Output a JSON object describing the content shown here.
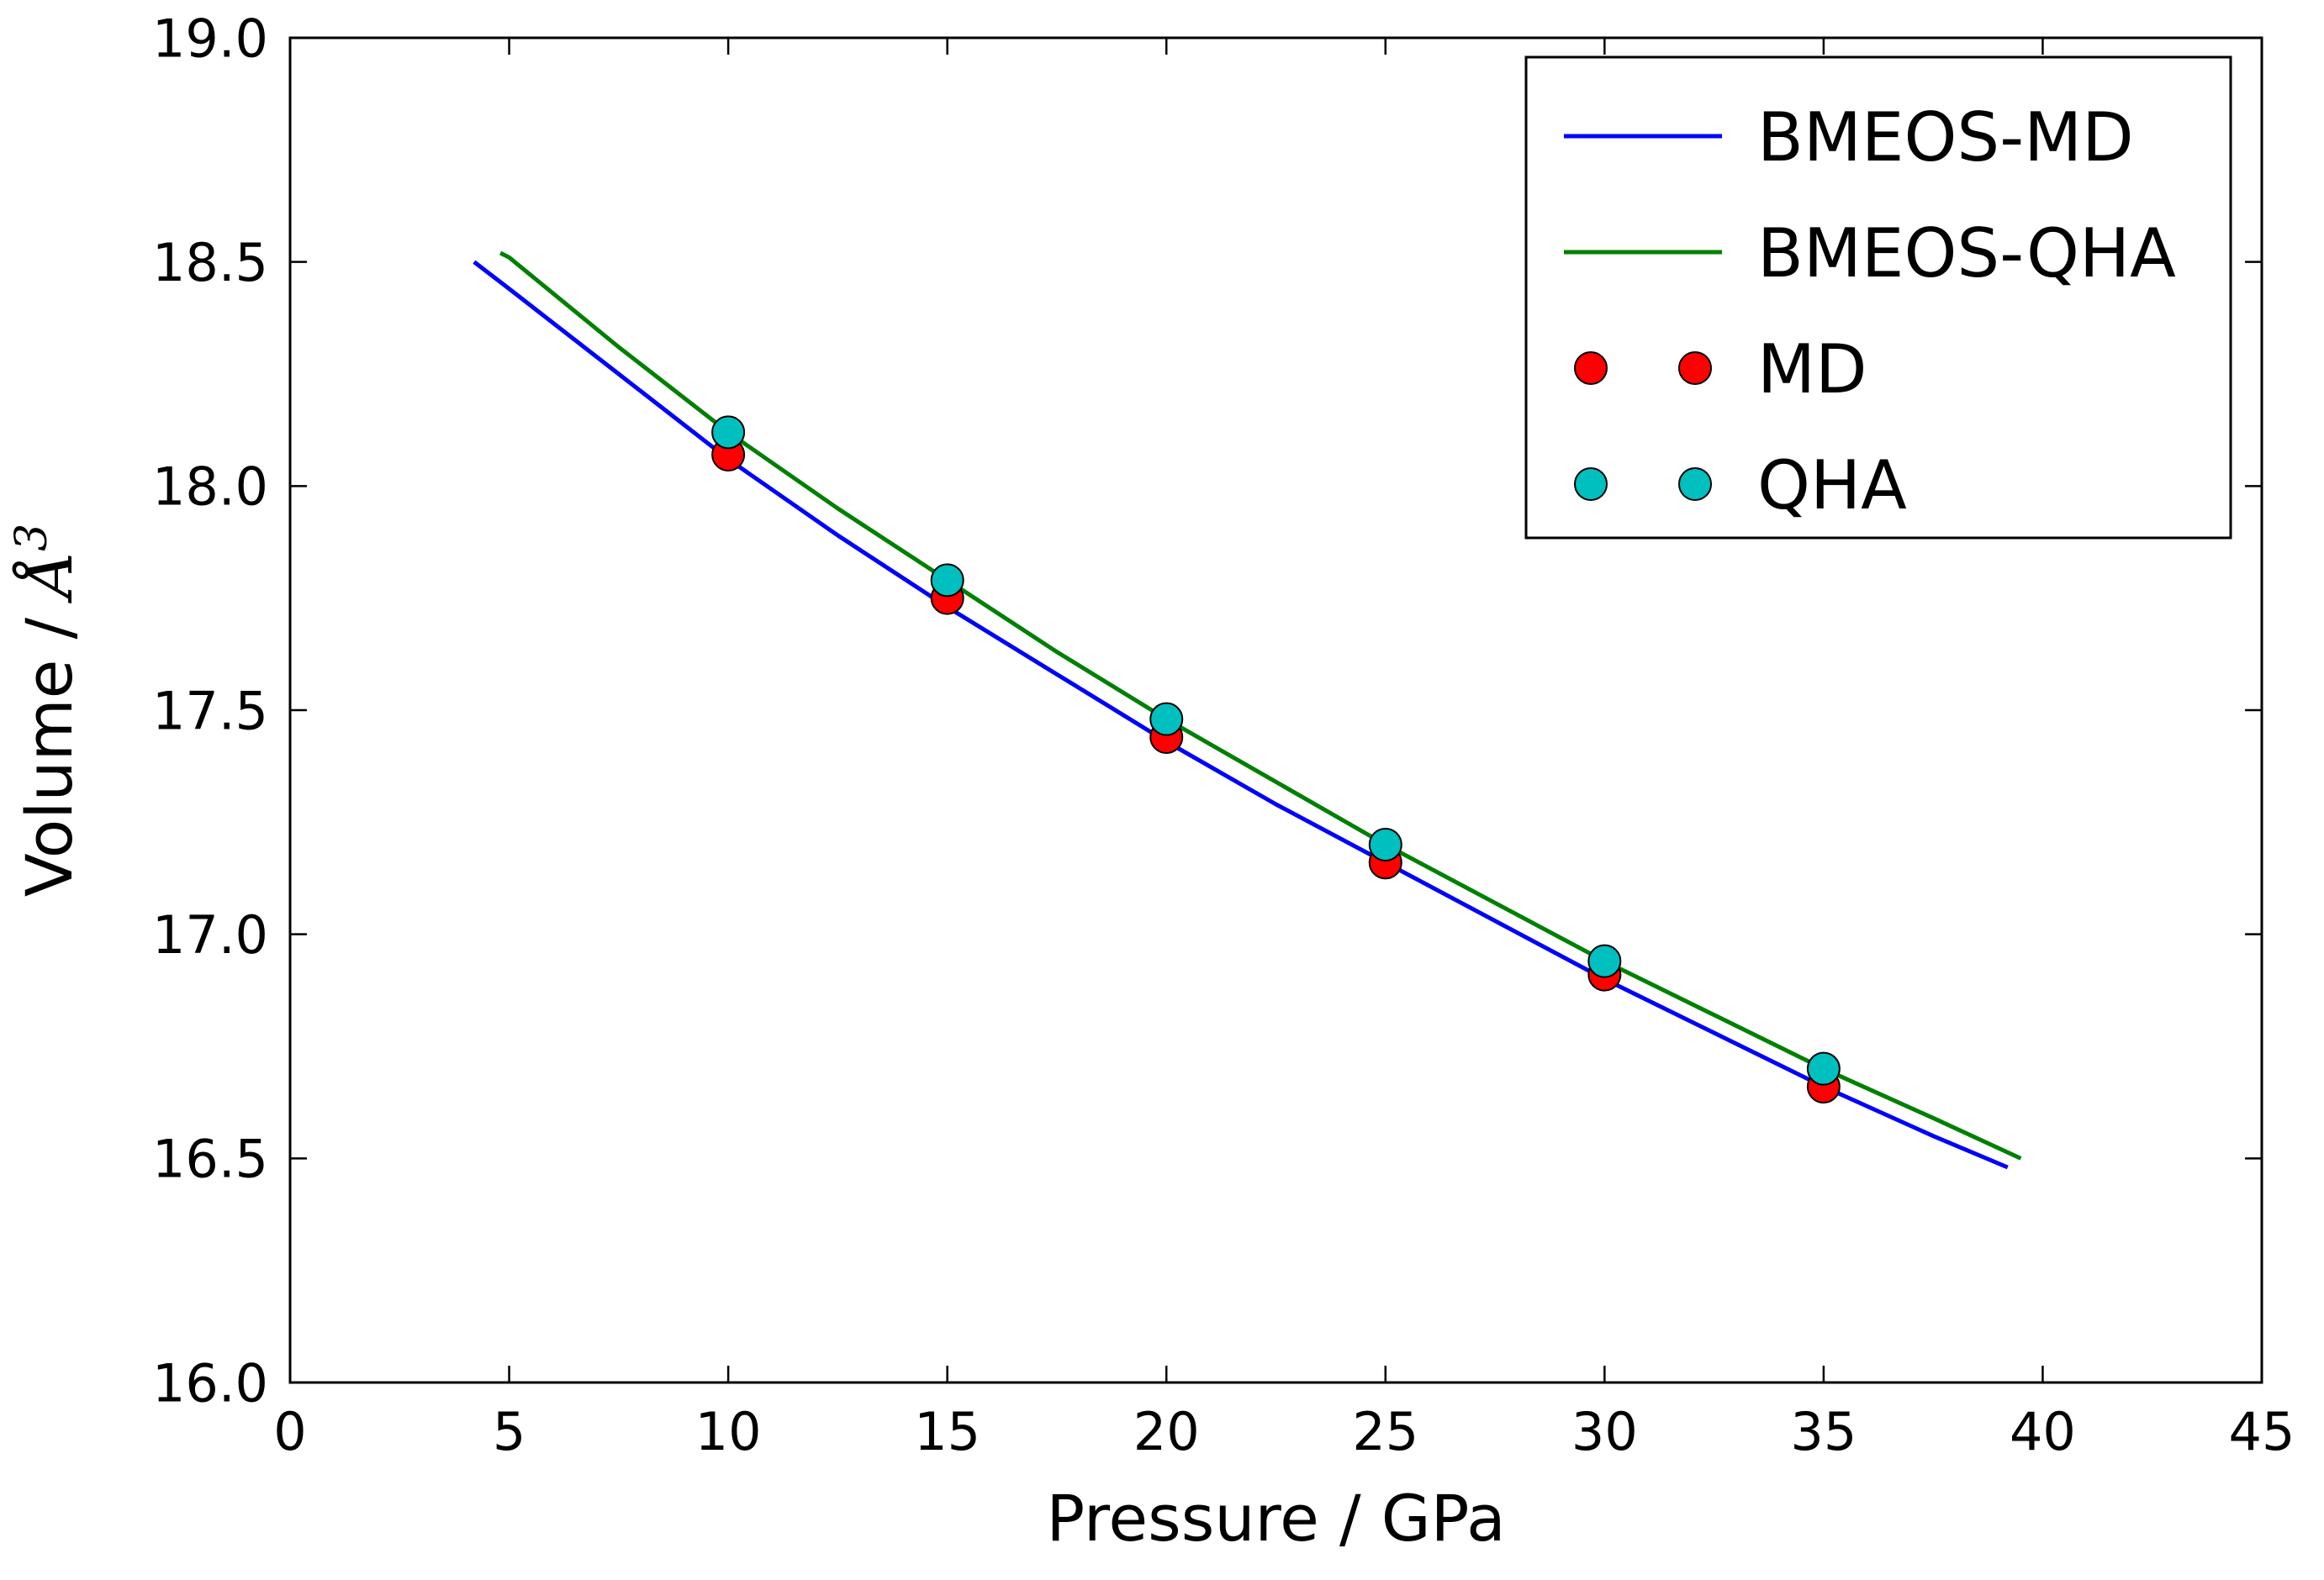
{
  "figure": {
    "background": "#ffffff",
    "frame_color": "#000000",
    "tick_color": "#000000"
  },
  "chart_data": {
    "type": "line+scatter",
    "title": "",
    "xlabel": "Pressure / GPa",
    "ylabel": "Volume / Å³",
    "ylabel_parts": {
      "prefix": "Volume / ",
      "symbol": "Å",
      "superscript": "3"
    },
    "xlim": [
      0,
      45
    ],
    "ylim": [
      16.0,
      19.0
    ],
    "xticks": [
      0,
      5,
      10,
      15,
      20,
      25,
      30,
      35,
      40,
      45
    ],
    "xtick_labels": [
      "0",
      "5",
      "10",
      "15",
      "20",
      "25",
      "30",
      "35",
      "40",
      "45"
    ],
    "yticks": [
      16.0,
      16.5,
      17.0,
      17.5,
      18.0,
      18.5,
      19.0
    ],
    "ytick_labels": [
      "16.0",
      "16.5",
      "17.0",
      "17.5",
      "18.0",
      "18.5",
      "19.0"
    ],
    "grid": false,
    "legend": {
      "position": "upper right",
      "entries": [
        {
          "label": "BMEOS-MD",
          "type": "line",
          "color": "#0000ff"
        },
        {
          "label": "BMEOS-QHA",
          "type": "line",
          "color": "#008000"
        },
        {
          "label": "MD",
          "type": "scatter",
          "color": "#ff0000"
        },
        {
          "label": "QHA",
          "type": "scatter",
          "color": "#00bfbf"
        }
      ]
    },
    "series": [
      {
        "name": "BMEOS-MD",
        "type": "line",
        "color": "#0000ff",
        "x": [
          4.2,
          5,
          7.5,
          10,
          12.5,
          15,
          17.5,
          20,
          22.5,
          25,
          27.5,
          30,
          32.5,
          35,
          37.5,
          39.2
        ],
        "y": [
          18.5,
          18.44,
          18.25,
          18.06,
          17.89,
          17.73,
          17.58,
          17.43,
          17.29,
          17.16,
          17.03,
          16.9,
          16.78,
          16.66,
          16.55,
          16.48
        ]
      },
      {
        "name": "BMEOS-QHA",
        "type": "line",
        "color": "#008000",
        "x": [
          4.8,
          5,
          7.5,
          10,
          12.5,
          15,
          17.5,
          20,
          22.5,
          25,
          27.5,
          30,
          32.5,
          35,
          37.5,
          39.5
        ],
        "y": [
          18.52,
          18.51,
          18.31,
          18.12,
          17.95,
          17.79,
          17.63,
          17.48,
          17.34,
          17.2,
          17.07,
          16.94,
          16.82,
          16.7,
          16.59,
          16.5
        ]
      },
      {
        "name": "MD",
        "type": "scatter",
        "color": "#ff0000",
        "edge_color": "#000000",
        "x": [
          10,
          15,
          20,
          25,
          30,
          35
        ],
        "y": [
          18.07,
          17.75,
          17.44,
          17.16,
          16.91,
          16.66
        ]
      },
      {
        "name": "QHA",
        "type": "scatter",
        "color": "#00bfbf",
        "edge_color": "#000000",
        "x": [
          10,
          15,
          20,
          25,
          30,
          35
        ],
        "y": [
          18.12,
          17.79,
          17.48,
          17.2,
          16.94,
          16.7
        ]
      }
    ]
  }
}
